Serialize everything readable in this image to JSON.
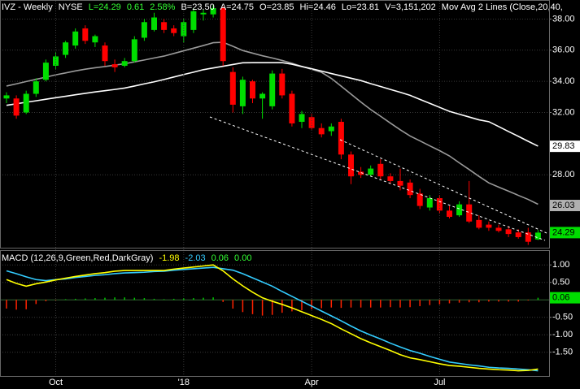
{
  "chart_data": [
    {
      "type": "candlestick",
      "header": [
        {
          "text": "IVZ - Weekly",
          "color": "#ffffff"
        },
        {
          "text": "NYSE",
          "color": "#ffffff"
        },
        {
          "text": "L=24.29",
          "color": "#33ff33"
        },
        {
          "text": "0.61",
          "color": "#33ff33"
        },
        {
          "text": "2.58%",
          "color": "#33ff33"
        },
        {
          "text": "B=23.50",
          "color": "#ffffff"
        },
        {
          "text": "A=24.75",
          "color": "#ffffff"
        },
        {
          "text": "O=23.85",
          "color": "#ffffff"
        },
        {
          "text": "Hi=24.46",
          "color": "#ffffff"
        },
        {
          "text": "Lo=23.81",
          "color": "#ffffff"
        },
        {
          "text": "V=3,151,202",
          "color": "#ffffff"
        },
        {
          "text": "Mov Avg 2 Lines (Close,20,40,",
          "color": "#ffffff"
        }
      ],
      "open": [
        32.9,
        32.9,
        32.0,
        33.2,
        34.1,
        35.0,
        35.7,
        36.3,
        37.4,
        36.5,
        36.3,
        35.1,
        35.0,
        35.3,
        36.8,
        37.3,
        37.8,
        37.4,
        36.9,
        37.3,
        38.3,
        38.3,
        38.7,
        34.6,
        32.4,
        34.0,
        32.9,
        32.4,
        34.5,
        33.2,
        31.4,
        31.7,
        31.0,
        30.8,
        31.4,
        29.3,
        28.2,
        28.0,
        28.7,
        27.9,
        27.6,
        27.5,
        26.8,
        25.9,
        26.5,
        25.7,
        25.4,
        26.1,
        25.1,
        24.8,
        24.6,
        24.5,
        24.3,
        24.3,
        23.85
      ],
      "high": [
        33.3,
        33.1,
        33.4,
        34.2,
        35.4,
        35.9,
        36.6,
        37.4,
        37.6,
        37.0,
        36.5,
        35.4,
        35.5,
        36.9,
        38.0,
        38.4,
        38.0,
        37.6,
        38.0,
        38.7,
        38.6,
        38.9,
        38.8,
        34.9,
        34.3,
        34.1,
        33.3,
        34.7,
        34.8,
        33.4,
        32.1,
        31.9,
        31.3,
        31.3,
        31.6,
        29.5,
        28.5,
        28.6,
        29.0,
        28.1,
        28.4,
        27.7,
        27.1,
        26.7,
        26.7,
        26.0,
        26.3,
        27.6,
        25.4,
        25.0,
        24.8,
        24.7,
        24.5,
        24.6,
        24.46
      ],
      "low": [
        32.6,
        31.6,
        31.9,
        33.0,
        34.0,
        34.8,
        35.5,
        36.1,
        36.4,
        36.2,
        35.0,
        34.6,
        34.9,
        35.2,
        36.6,
        37.2,
        37.1,
        36.9,
        36.5,
        37.1,
        37.9,
        38.1,
        35.0,
        32.0,
        31.9,
        32.6,
        31.6,
        32.2,
        32.9,
        31.1,
        31.0,
        30.9,
        30.4,
        30.5,
        29.0,
        27.4,
        27.8,
        27.9,
        27.7,
        27.4,
        27.0,
        26.5,
        25.8,
        25.7,
        25.5,
        25.2,
        25.3,
        24.9,
        24.5,
        24.4,
        24.3,
        24.0,
        23.9,
        23.5,
        23.81
      ],
      "close": [
        33.1,
        31.8,
        33.2,
        34.0,
        35.2,
        35.6,
        36.5,
        37.2,
        36.6,
        36.9,
        35.3,
        34.9,
        35.3,
        36.7,
        37.8,
        38.1,
        37.3,
        37.1,
        37.8,
        38.5,
        38.4,
        38.7,
        35.3,
        32.5,
        34.1,
        32.9,
        33.2,
        34.5,
        33.1,
        31.3,
        31.9,
        31.0,
        30.6,
        31.1,
        29.3,
        27.9,
        28.0,
        28.4,
        27.9,
        27.6,
        27.3,
        26.7,
        26.0,
        26.5,
        25.7,
        25.3,
        26.1,
        25.0,
        24.6,
        24.6,
        24.4,
        24.2,
        24.0,
        23.7,
        24.29
      ],
      "up_color": "#00dd00",
      "down_color": "#ff0000",
      "moving_averages": [
        {
          "color": "#9a9a9a",
          "values": [
            33.7,
            33.84,
            33.99,
            34.13,
            34.27,
            34.42,
            34.54,
            34.67,
            34.78,
            34.87,
            34.95,
            35.04,
            35.13,
            35.25,
            35.37,
            35.5,
            35.62,
            35.79,
            35.96,
            36.13,
            36.3,
            36.48,
            36.51,
            36.25,
            35.98,
            35.81,
            35.64,
            35.5,
            35.34,
            35.16,
            34.96,
            34.77,
            34.58,
            34.19,
            33.69,
            33.18,
            32.67,
            32.19,
            31.76,
            31.32,
            30.89,
            30.49,
            30.18,
            29.86,
            29.55,
            29.21,
            28.77,
            28.34,
            27.9,
            27.48,
            27.21,
            26.95,
            26.68,
            26.42,
            26.11
          ]
        },
        {
          "color": "#ffffff",
          "values": [
            32.46,
            32.56,
            32.66,
            32.75,
            32.85,
            32.95,
            33.04,
            33.14,
            33.23,
            33.32,
            33.4,
            33.48,
            33.57,
            33.7,
            33.84,
            33.97,
            34.12,
            34.28,
            34.44,
            34.59,
            34.75,
            34.86,
            34.97,
            35.08,
            35.19,
            35.2,
            35.2,
            35.2,
            35.2,
            35.1,
            34.95,
            34.81,
            34.66,
            34.5,
            34.35,
            34.2,
            34.05,
            33.85,
            33.67,
            33.48,
            33.3,
            33.1,
            32.84,
            32.59,
            32.33,
            32.07,
            31.89,
            31.71,
            31.53,
            31.41,
            31.1,
            30.78,
            30.47,
            30.15,
            29.84
          ]
        }
      ],
      "ylim": [
        23.32,
        39.17
      ],
      "yticks": [
        {
          "value": 38,
          "label": "38.00"
        },
        {
          "value": 36,
          "label": "36.00"
        },
        {
          "value": 34,
          "label": "34.00"
        },
        {
          "value": 32,
          "label": "32.00"
        },
        {
          "value": 28,
          "label": "28.00"
        }
      ],
      "markers": [
        {
          "value": 29.83,
          "bg": "#ffffff",
          "fg": "#000000"
        },
        {
          "value": 26.03,
          "bg": "#b0b0b0",
          "fg": "#000000"
        },
        {
          "value": 24.29,
          "bg": "#00dd00",
          "fg": "#000000"
        }
      ],
      "grid": true
    },
    {
      "type": "macd",
      "header": [
        {
          "text": "MACD (12,26,9,Green,Red,DarkGray)",
          "color": "#ffffff"
        },
        {
          "text": "-1.98",
          "color": "#ffff00"
        },
        {
          "text": "-2.03",
          "color": "#33ccff"
        },
        {
          "text": "0.06",
          "color": "#33ff33"
        },
        {
          "text": "0.00",
          "color": "#33ff33"
        }
      ],
      "categories": [
        null,
        null,
        null,
        null,
        null,
        "Oct",
        null,
        null,
        null,
        null,
        null,
        null,
        null,
        null,
        null,
        null,
        null,
        null,
        "'18",
        null,
        null,
        null,
        null,
        null,
        null,
        null,
        null,
        null,
        null,
        null,
        null,
        "Apr",
        null,
        null,
        null,
        null,
        null,
        null,
        null,
        null,
        null,
        null,
        null,
        null,
        "Jul",
        null,
        null,
        null,
        null,
        null,
        null,
        null,
        null,
        null,
        null
      ],
      "macd": {
        "color": "#ffff00",
        "values": [
          0.58,
          0.47,
          0.39,
          0.46,
          0.51,
          0.57,
          0.62,
          0.67,
          0.71,
          0.75,
          0.78,
          0.82,
          0.84,
          0.84,
          0.84,
          0.84,
          0.84,
          0.88,
          0.91,
          0.94,
          0.97,
          1.0,
          0.83,
          0.6,
          0.4,
          0.22,
          0.06,
          -0.04,
          -0.13,
          -0.23,
          -0.34,
          -0.45,
          -0.56,
          -0.68,
          -0.83,
          -0.97,
          -1.11,
          -1.23,
          -1.34,
          -1.45,
          -1.57,
          -1.66,
          -1.71,
          -1.77,
          -1.83,
          -1.88,
          -1.9,
          -1.93,
          -1.96,
          -1.98,
          -2.0,
          -2.01,
          -2.03,
          -2.02,
          -1.98
        ]
      },
      "signal": {
        "color": "#33ccff",
        "values": [
          0.83,
          0.75,
          0.66,
          0.58,
          0.55,
          0.58,
          0.6,
          0.64,
          0.67,
          0.7,
          0.72,
          0.75,
          0.77,
          0.78,
          0.79,
          0.81,
          0.82,
          0.85,
          0.87,
          0.89,
          0.91,
          0.93,
          0.89,
          0.85,
          0.75,
          0.63,
          0.51,
          0.39,
          0.24,
          0.1,
          -0.04,
          -0.18,
          -0.32,
          -0.46,
          -0.6,
          -0.75,
          -0.89,
          -1.01,
          -1.12,
          -1.24,
          -1.35,
          -1.45,
          -1.53,
          -1.62,
          -1.7,
          -1.78,
          -1.82,
          -1.86,
          -1.89,
          -1.93,
          -1.95,
          -1.96,
          -1.98,
          -2.0,
          -2.03
        ]
      },
      "histogram": {
        "up_color": "#00cc00",
        "down_color": "#ff2200",
        "values": [
          -0.25,
          -0.28,
          -0.27,
          -0.12,
          -0.04,
          -0.01,
          0.02,
          0.03,
          0.04,
          0.05,
          0.06,
          0.07,
          0.07,
          0.06,
          0.05,
          0.03,
          0.02,
          0.03,
          0.04,
          0.05,
          0.06,
          0.07,
          -0.06,
          -0.25,
          -0.35,
          -0.41,
          -0.45,
          -0.43,
          -0.37,
          -0.33,
          -0.3,
          -0.27,
          -0.24,
          -0.22,
          -0.23,
          -0.22,
          -0.22,
          -0.22,
          -0.22,
          -0.21,
          -0.22,
          -0.21,
          -0.18,
          -0.15,
          -0.13,
          -0.1,
          -0.08,
          -0.07,
          -0.07,
          -0.05,
          -0.05,
          -0.05,
          -0.05,
          -0.02,
          0.06
        ]
      },
      "ylim": [
        -2.18,
        1.4
      ],
      "yticks": [
        {
          "value": 1,
          "label": "1.00"
        },
        {
          "value": 0.5,
          "label": "0.50"
        },
        {
          "value": -0.5,
          "label": "-0.50"
        },
        {
          "value": -1,
          "label": "-1.00"
        },
        {
          "value": -1.5,
          "label": "-1.50"
        }
      ],
      "markers": [
        {
          "value": 0.06,
          "bg": "#00dd00",
          "fg": "#000000"
        }
      ],
      "grid": true
    }
  ]
}
